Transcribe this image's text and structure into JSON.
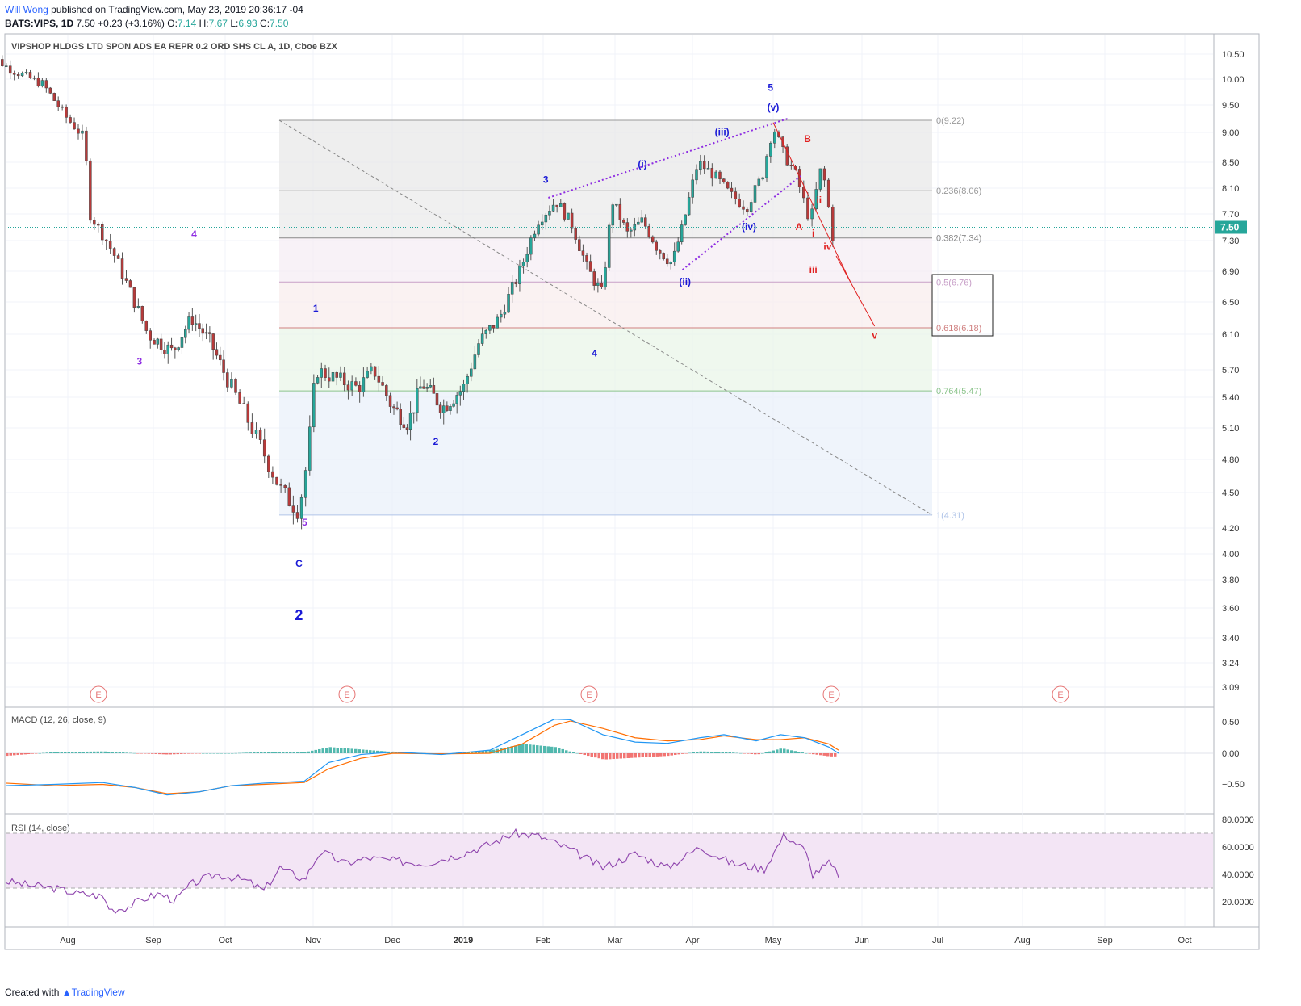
{
  "header": {
    "author": "Will Wong",
    "published": "published on TradingView.com, May 23, 2019 20:36:17 -04",
    "symbol": "BATS:VIPS, 1D",
    "last": "7.50",
    "change": "+0.23 (+3.16%)",
    "o_label": "O:",
    "o": "7.14",
    "h_label": "H:",
    "h": "7.67",
    "l_label": "L:",
    "l": "6.93",
    "c_label": "C:",
    "c": "7.50"
  },
  "footer": {
    "created": "Created with",
    "brand": "TradingView"
  },
  "colors": {
    "up": "#26a69a",
    "down": "#b73a3a",
    "wave_blue": "#1a1ad6",
    "wave_purple": "#8e2de2",
    "wave_red": "#e02020",
    "macd": "#2196f3",
    "signal": "#ff6d00",
    "rsi": "#8e44ad"
  },
  "chart_data": [
    {
      "type": "candlestick",
      "title": "VIPSHOP HLDGS LTD SPON ADS EA REPR 0.2 ORD SHS CL A, 1D, Cboe BZX",
      "y_ticks": [
        "10.50",
        "10.00",
        "9.50",
        "9.00",
        "8.50",
        "8.10",
        "7.70",
        "7.30",
        "6.90",
        "6.50",
        "6.10",
        "5.70",
        "5.40",
        "5.10",
        "4.80",
        "4.50",
        "4.20",
        "4.00",
        "3.80",
        "3.60",
        "3.40",
        "3.24",
        "3.09"
      ],
      "x_labels": [
        {
          "label": "Aug",
          "x": 84
        },
        {
          "label": "Sep",
          "x": 190
        },
        {
          "label": "Oct",
          "x": 279
        },
        {
          "label": "Nov",
          "x": 388
        },
        {
          "label": "Dec",
          "x": 486
        },
        {
          "label": "2019",
          "x": 574
        },
        {
          "label": "Feb",
          "x": 673
        },
        {
          "label": "Mar",
          "x": 762
        },
        {
          "label": "Apr",
          "x": 858
        },
        {
          "label": "May",
          "x": 958
        },
        {
          "label": "Jun",
          "x": 1068
        },
        {
          "label": "Jul",
          "x": 1162
        },
        {
          "label": "Aug",
          "x": 1267
        },
        {
          "label": "Sep",
          "x": 1369
        },
        {
          "label": "Oct",
          "x": 1468
        }
      ],
      "last_price": "7.50",
      "fib_levels": [
        {
          "label": "0(9.22)",
          "value": 9.22
        },
        {
          "label": "0.236(8.06)",
          "value": 8.06
        },
        {
          "label": "0.382(7.34)",
          "value": 7.34
        },
        {
          "label": "0.5(6.76)",
          "value": 6.76
        },
        {
          "label": "0.618(6.18)",
          "value": 6.18
        },
        {
          "label": "0.764(5.47)",
          "value": 5.47
        },
        {
          "label": "1(4.31)",
          "value": 4.31
        }
      ],
      "wave_labels": [
        {
          "text": "3",
          "date": "Feb 2",
          "price": 8.18,
          "color": "blue"
        },
        {
          "text": "1",
          "date": "Nov 2",
          "price": 6.38,
          "color": "blue"
        },
        {
          "text": "2",
          "date": "Dec 20",
          "price": 4.94,
          "color": "blue"
        },
        {
          "text": "4",
          "date": "Feb 21",
          "price": 5.85,
          "color": "blue"
        },
        {
          "text": "5",
          "date": "Apr 30",
          "price": 9.77,
          "color": "blue"
        },
        {
          "text": "(i)",
          "date": "Mar 12",
          "price": 8.42,
          "color": "blue"
        },
        {
          "text": "(ii)",
          "date": "Mar 29",
          "price": 6.72,
          "color": "blue"
        },
        {
          "text": "(iii)",
          "date": "Apr 12",
          "price": 8.95,
          "color": "blue"
        },
        {
          "text": "(iv)",
          "date": "Apr 22",
          "price": 7.46,
          "color": "blue"
        },
        {
          "text": "(v)",
          "date": "May 1",
          "price": 9.4,
          "color": "blue"
        },
        {
          "text": "C",
          "date": "Oct 27",
          "price": 3.9,
          "color": "blue"
        },
        {
          "text": "2",
          "date": "Oct 27",
          "price": 3.52,
          "color": "blue"
        },
        {
          "text": "3",
          "date": "Aug 27",
          "price": 5.76,
          "color": "purple"
        },
        {
          "text": "4",
          "date": "Sep 18",
          "price": 7.35,
          "color": "purple"
        },
        {
          "text": "5",
          "date": "Oct 29",
          "price": 4.22,
          "color": "purple"
        },
        {
          "text": "A",
          "date": "May 10",
          "price": 7.46,
          "color": "red"
        },
        {
          "text": "B",
          "date": "May 13",
          "price": 8.84,
          "color": "red"
        },
        {
          "text": "i",
          "date": "May 15",
          "price": 7.36,
          "color": "red"
        },
        {
          "text": "ii",
          "date": "May 17",
          "price": 7.86,
          "color": "red"
        },
        {
          "text": "iii",
          "date": "May 15",
          "price": 6.88,
          "color": "red"
        },
        {
          "text": "iv",
          "date": "May 20",
          "price": 7.18,
          "color": "red"
        },
        {
          "text": "v",
          "date": "Jun 6",
          "price": 6.05,
          "color": "red"
        }
      ],
      "earnings_markers": [
        {
          "label": "E",
          "x": 122
        },
        {
          "label": "E",
          "x": 430
        },
        {
          "label": "E",
          "x": 730
        },
        {
          "label": "E",
          "x": 1030
        },
        {
          "label": "E",
          "x": 1314
        }
      ]
    },
    {
      "type": "line",
      "title": "MACD (12, 26, close, 9)",
      "y_ticks": [
        "0.50",
        "0.00",
        "−0.50"
      ],
      "series": [
        {
          "name": "MACD"
        },
        {
          "name": "Signal"
        },
        {
          "name": "Histogram"
        }
      ],
      "macd_points": [
        [
          0,
          -0.52
        ],
        [
          60,
          -0.5
        ],
        [
          120,
          -0.47
        ],
        [
          160,
          -0.55
        ],
        [
          200,
          -0.67
        ],
        [
          240,
          -0.62
        ],
        [
          280,
          -0.52
        ],
        [
          320,
          -0.48
        ],
        [
          370,
          -0.45
        ],
        [
          400,
          -0.15
        ],
        [
          440,
          -0.02
        ],
        [
          480,
          0.02
        ],
        [
          540,
          -0.02
        ],
        [
          600,
          0.05
        ],
        [
          640,
          0.3
        ],
        [
          680,
          0.55
        ],
        [
          700,
          0.54
        ],
        [
          740,
          0.3
        ],
        [
          780,
          0.18
        ],
        [
          820,
          0.16
        ],
        [
          860,
          0.25
        ],
        [
          890,
          0.3
        ],
        [
          930,
          0.2
        ],
        [
          960,
          0.3
        ],
        [
          990,
          0.25
        ],
        [
          1020,
          0.1
        ],
        [
          1032,
          0.0
        ]
      ],
      "signal_points": [
        [
          0,
          -0.48
        ],
        [
          60,
          -0.52
        ],
        [
          120,
          -0.5
        ],
        [
          160,
          -0.55
        ],
        [
          200,
          -0.65
        ],
        [
          240,
          -0.62
        ],
        [
          280,
          -0.52
        ],
        [
          320,
          -0.5
        ],
        [
          370,
          -0.47
        ],
        [
          400,
          -0.25
        ],
        [
          440,
          -0.08
        ],
        [
          480,
          0.0
        ],
        [
          540,
          -0.01
        ],
        [
          600,
          0.0
        ],
        [
          640,
          0.15
        ],
        [
          680,
          0.45
        ],
        [
          700,
          0.52
        ],
        [
          740,
          0.4
        ],
        [
          780,
          0.25
        ],
        [
          820,
          0.2
        ],
        [
          860,
          0.22
        ],
        [
          890,
          0.28
        ],
        [
          930,
          0.22
        ],
        [
          960,
          0.22
        ],
        [
          990,
          0.25
        ],
        [
          1020,
          0.15
        ],
        [
          1032,
          0.05
        ]
      ]
    },
    {
      "type": "line",
      "title": "RSI (14, close)",
      "y_ticks": [
        "80.0000",
        "60.0000",
        "40.0000",
        "20.0000"
      ],
      "series": [
        {
          "name": "RSI"
        }
      ],
      "bands": [
        30,
        70
      ],
      "points": [
        [
          0,
          35
        ],
        [
          30,
          32
        ],
        [
          60,
          30
        ],
        [
          90,
          26
        ],
        [
          120,
          24
        ],
        [
          130,
          14
        ],
        [
          150,
          16
        ],
        [
          170,
          22
        ],
        [
          190,
          26
        ],
        [
          210,
          21
        ],
        [
          230,
          33
        ],
        [
          260,
          40
        ],
        [
          280,
          38
        ],
        [
          300,
          35
        ],
        [
          320,
          28
        ],
        [
          340,
          45
        ],
        [
          370,
          36
        ],
        [
          390,
          57
        ],
        [
          420,
          48
        ],
        [
          450,
          52
        ],
        [
          480,
          50
        ],
        [
          520,
          48
        ],
        [
          560,
          54
        ],
        [
          600,
          62
        ],
        [
          630,
          70
        ],
        [
          660,
          68
        ],
        [
          700,
          58
        ],
        [
          740,
          45
        ],
        [
          780,
          55
        ],
        [
          820,
          45
        ],
        [
          860,
          60
        ],
        [
          900,
          48
        ],
        [
          940,
          44
        ],
        [
          965,
          69
        ],
        [
          990,
          58
        ],
        [
          1000,
          40
        ],
        [
          1020,
          48
        ],
        [
          1032,
          40
        ]
      ]
    }
  ]
}
